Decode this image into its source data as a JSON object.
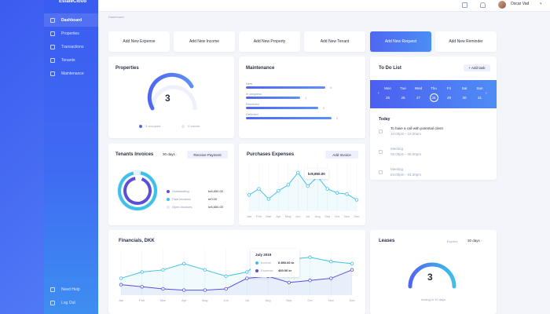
{
  "app": {
    "name": "EstateCloud"
  },
  "sidebar": {
    "items": [
      {
        "label": "Dashboard"
      },
      {
        "label": "Properties"
      },
      {
        "label": "Transactions"
      },
      {
        "label": "Tenants"
      },
      {
        "label": "Maintenance"
      }
    ],
    "bottom": [
      {
        "label": "Need Help"
      },
      {
        "label": "Log Out"
      }
    ]
  },
  "header": {
    "user_name": "Oscar Vad"
  },
  "breadcrumb": "Dashboard",
  "quick_actions": [
    {
      "label": "Add New Expense"
    },
    {
      "label": "Add New Income"
    },
    {
      "label": "Add New Property"
    },
    {
      "label": "Add New Tenant"
    },
    {
      "label": "Add New Request"
    },
    {
      "label": "Add New Reminder"
    }
  ],
  "properties": {
    "title": "Properties",
    "value": "3",
    "occupied_label": "3 occupied",
    "vacant_label": "0 vacant",
    "occupied_fraction": 1.0
  },
  "maintenance": {
    "title": "Maintenance",
    "rows": [
      {
        "label": "New",
        "count": "4",
        "fraction": 0.88
      },
      {
        "label": "In progress",
        "count": "1",
        "fraction": 0.6
      },
      {
        "label": "Resolved",
        "count": "2",
        "fraction": 0.8
      },
      {
        "label": "Deferred",
        "count": "2",
        "fraction": 0.95
      }
    ]
  },
  "todo": {
    "title": "To Do List",
    "add_label": "+ Add task",
    "days": [
      {
        "name": "Mon",
        "date": "25"
      },
      {
        "name": "Tue",
        "date": "26"
      },
      {
        "name": "Wed",
        "date": "27"
      },
      {
        "name": "Thu",
        "date": "28"
      },
      {
        "name": "Fri",
        "date": "29"
      },
      {
        "name": "Sat",
        "date": "30"
      },
      {
        "name": "Sun",
        "date": "31"
      }
    ],
    "selected_day": 3,
    "today_label": "Today",
    "tasks": [
      {
        "title": "To have a call with potential client",
        "time": "10:00pm - 10:30am",
        "done": false
      },
      {
        "title": "Meeting",
        "time": "05:00pm - 06:00pm",
        "done": true
      },
      {
        "title": "Meeting",
        "time": "04:00pm - 04:30pm",
        "done": true
      }
    ]
  },
  "tenants_invoices": {
    "title": "Tenants Invoices",
    "period": "30 days",
    "button": "Receive Payment",
    "legend": [
      {
        "label": "Outstanding",
        "value": "kr8,850.00",
        "color": "#5b4fd9"
      },
      {
        "label": "Paid invoices",
        "value": "kr0.00",
        "color": "#3fc0e8"
      },
      {
        "label": "Open invoices",
        "value": "kr8,850.00",
        "color": "#e3e8f4"
      }
    ]
  },
  "purchases": {
    "title": "Purchases Expenses",
    "button": "Add Invoice",
    "tooltip": "kr8,850.00"
  },
  "financials": {
    "title": "Financials, DKK",
    "tooltip": {
      "title": "July 2019",
      "income_label": "Income",
      "income_value": "8 850.00 kr",
      "expense_label": "Expense",
      "expense_value": "400.00 kr"
    }
  },
  "leases": {
    "title": "Leases",
    "expires_label": "Expires",
    "period": "30 days",
    "value": "3",
    "caption": "ending in 30 days"
  },
  "chart_data": [
    {
      "type": "line",
      "name": "purchases-expenses",
      "x": [
        "Jan",
        "Feb",
        "Mar",
        "Apr",
        "May",
        "Jun",
        "Jul",
        "Aug",
        "Sep",
        "Oct",
        "Nov",
        "Dec"
      ],
      "series": [
        {
          "values": [
            40,
            55,
            30,
            50,
            65,
            95,
            62,
            85,
            55,
            45,
            42,
            28
          ]
        }
      ],
      "ylim": [
        0,
        120
      ]
    },
    {
      "type": "line",
      "name": "financials",
      "x": [
        "Jan",
        "Feb",
        "Mar",
        "Apr",
        "May",
        "Jun",
        "Jul",
        "Aug",
        "Sep",
        "Oct",
        "Nov",
        "Dec"
      ],
      "series": [
        {
          "name": "Income",
          "values": [
            40,
            55,
            60,
            75,
            60,
            45,
            55,
            95,
            85,
            90,
            80,
            75
          ]
        },
        {
          "name": "Expense",
          "values": [
            25,
            20,
            15,
            12,
            12,
            15,
            40,
            45,
            30,
            35,
            40,
            60
          ]
        }
      ],
      "ylim": [
        0,
        110
      ]
    }
  ],
  "colors": {
    "primary": "#4f67f2",
    "accent": "#3fc0e8",
    "sidebar": "#3a5cf1"
  }
}
